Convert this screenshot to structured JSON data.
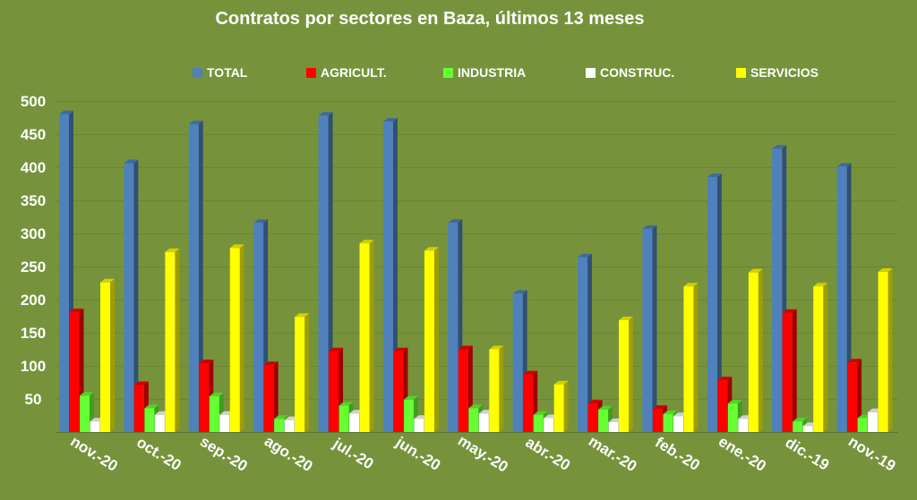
{
  "chart_data": {
    "type": "bar",
    "title": "Contratos por sectores en Baza, últimos 13 meses",
    "xlabel": "",
    "ylabel": "",
    "ylim": [
      0,
      500
    ],
    "yticks": [
      50,
      100,
      150,
      200,
      250,
      300,
      350,
      400,
      450,
      500
    ],
    "grid": true,
    "legend_position": "top",
    "categories": [
      "nov.-20",
      "oct.-20",
      "sep.-20",
      "ago.-20",
      "jul.-20",
      "jun.-20",
      "may.-20",
      "abr.-20",
      "mar.-20",
      "feb.-20",
      "ene.-20",
      "dic.-19",
      "nov.-19"
    ],
    "series": [
      {
        "name": "TOTAL",
        "color": "#4f81bd",
        "values": [
          480,
          406,
          465,
          316,
          478,
          469,
          316,
          209,
          264,
          307,
          385,
          428,
          401
        ]
      },
      {
        "name": "AGRICULT.",
        "color": "#ff0000",
        "values": [
          181,
          71,
          104,
          101,
          122,
          122,
          125,
          87,
          43,
          35,
          78,
          180,
          105
        ]
      },
      {
        "name": "INDUSTRIA",
        "color": "#66ff33",
        "values": [
          55,
          36,
          54,
          20,
          40,
          49,
          36,
          26,
          34,
          27,
          43,
          16,
          21
        ]
      },
      {
        "name": "CONSTRUC.",
        "color": "#ffffff",
        "values": [
          16,
          26,
          26,
          18,
          28,
          20,
          28,
          21,
          15,
          24,
          20,
          9,
          30
        ]
      },
      {
        "name": "SERVICIOS",
        "color": "#ffff00",
        "values": [
          226,
          272,
          278,
          174,
          285,
          274,
          125,
          72,
          169,
          220,
          241,
          220,
          242
        ]
      }
    ]
  }
}
